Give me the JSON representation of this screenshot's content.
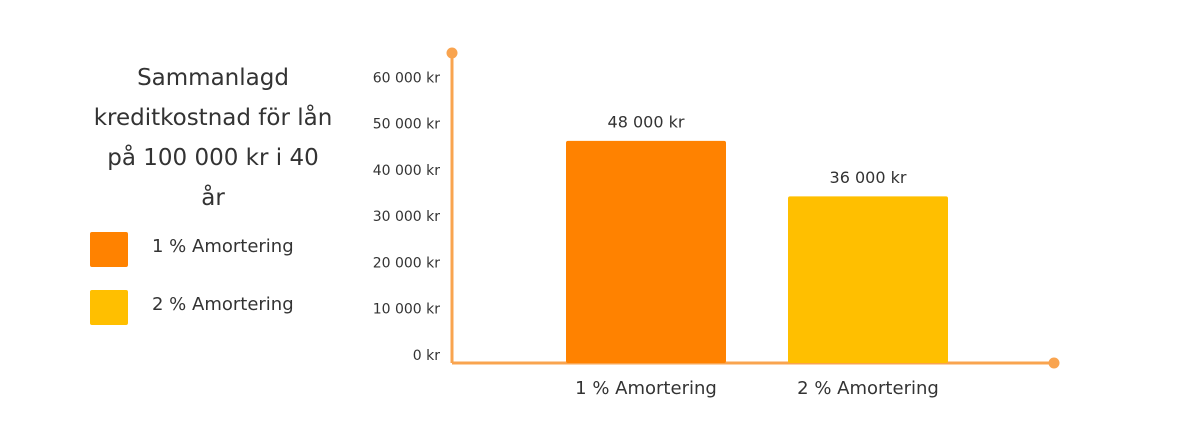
{
  "chart_data": {
    "type": "bar",
    "title": "Sammanlagd kreditkostnad för lån på 100 000 kr i 40 år",
    "categories": [
      "1 % Amortering",
      "2 % Amortering"
    ],
    "values": [
      48000,
      36000
    ],
    "value_labels": [
      "48 000 kr",
      "36 000 kr"
    ],
    "colors": [
      "#ff8200",
      "#ffbf00"
    ],
    "ylim": [
      0,
      67000
    ],
    "yticks": [
      {
        "value": 0,
        "label": "0 kr"
      },
      {
        "value": 10000,
        "label": "10 000 kr"
      },
      {
        "value": 20000,
        "label": "20 000 kr"
      },
      {
        "value": 30000,
        "label": "30 000 kr"
      },
      {
        "value": 40000,
        "label": "40 000 kr"
      },
      {
        "value": 50000,
        "label": "50 000 kr"
      },
      {
        "value": 60000,
        "label": "60 000 kr"
      }
    ],
    "grid": false
  }
}
